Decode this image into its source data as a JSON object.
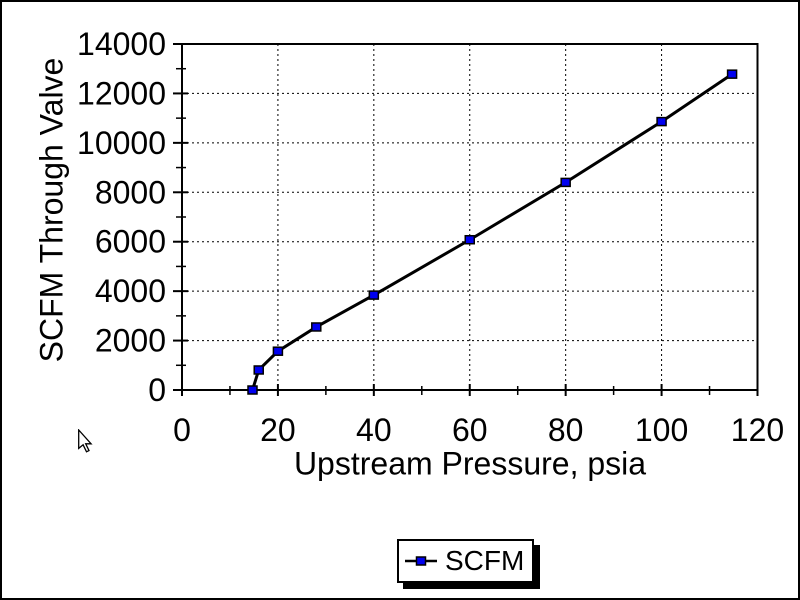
{
  "window": {
    "background": "#ffffff",
    "frame_color": "#000000"
  },
  "chart_data": {
    "type": "line",
    "xlabel": "Upstream Pressure, psia",
    "ylabel": "SCFM Through Valve",
    "xlim": [
      0,
      120
    ],
    "ylim": [
      0,
      14000
    ],
    "xticks": [
      0,
      20,
      40,
      60,
      80,
      100,
      120
    ],
    "yticks": [
      0,
      2000,
      4000,
      6000,
      8000,
      10000,
      12000,
      14000
    ],
    "x_minor_ticks": [
      10,
      30,
      50,
      70,
      90,
      110
    ],
    "y_minor_ticks": [
      1000,
      3000,
      5000,
      7000,
      9000,
      11000,
      13000
    ],
    "grid": "dotted",
    "grid_color": "#000000",
    "legend_position": "bottom-center",
    "series": [
      {
        "name": "SCFM",
        "x": [
          14.7,
          16,
          20,
          28,
          40,
          60,
          80,
          100,
          114.7
        ],
        "y": [
          0,
          810,
          1570,
          2550,
          3840,
          6080,
          8400,
          10860,
          12780
        ],
        "line_color": "#000000",
        "marker": "square",
        "marker_color": "#0000f0",
        "marker_border": "#000000"
      }
    ]
  },
  "icons": {
    "cursor": "arrow-pointer",
    "legend_marker": "blue-square-marker"
  }
}
